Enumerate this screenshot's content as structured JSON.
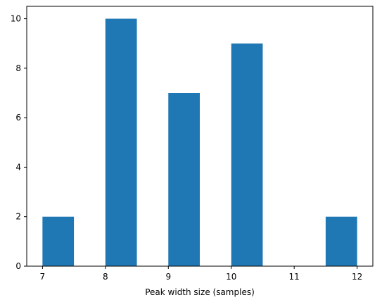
{
  "chart_data": {
    "type": "bar",
    "subtype": "histogram",
    "xlabel": "Peak width size (samples)",
    "ylabel": "",
    "title": "",
    "xlim": [
      6.75,
      12.25
    ],
    "ylim": [
      0,
      10.5
    ],
    "xticks": [
      7,
      8,
      9,
      10,
      11,
      12
    ],
    "yticks": [
      0,
      2,
      4,
      6,
      8,
      10
    ],
    "bins": [
      {
        "x0": 7.0,
        "x1": 7.5,
        "count": 2
      },
      {
        "x0": 7.5,
        "x1": 8.0,
        "count": 0
      },
      {
        "x0": 8.0,
        "x1": 8.5,
        "count": 10
      },
      {
        "x0": 8.5,
        "x1": 9.0,
        "count": 0
      },
      {
        "x0": 9.0,
        "x1": 9.5,
        "count": 7
      },
      {
        "x0": 9.5,
        "x1": 10.0,
        "count": 0
      },
      {
        "x0": 10.0,
        "x1": 10.5,
        "count": 9
      },
      {
        "x0": 10.5,
        "x1": 11.0,
        "count": 0
      },
      {
        "x0": 11.0,
        "x1": 11.5,
        "count": 0
      },
      {
        "x0": 11.5,
        "x1": 12.0,
        "count": 2
      }
    ],
    "bar_color": "#1f77b4",
    "grid": false,
    "legend": "none"
  }
}
